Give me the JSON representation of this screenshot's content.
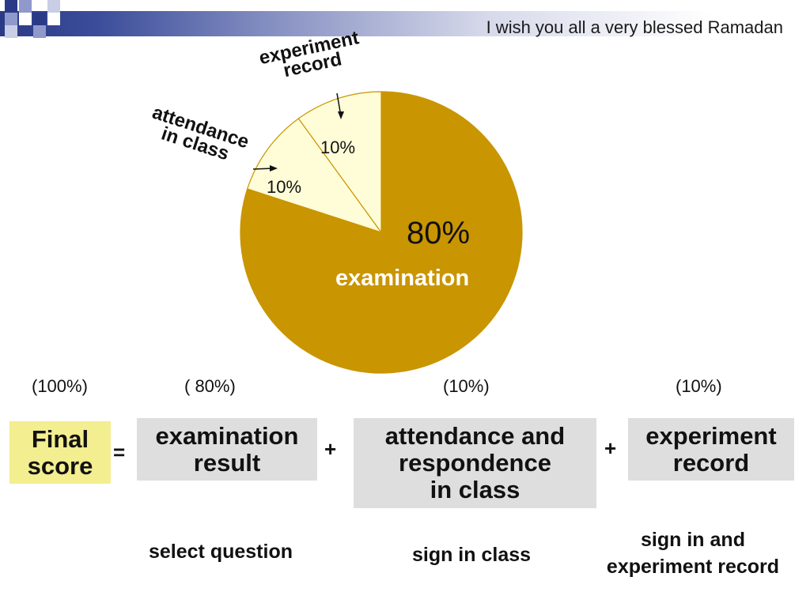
{
  "header": {
    "greeting": "I wish you all a very blessed Ramadan"
  },
  "colors": {
    "accent": "#2b3a87",
    "examination_slice": "#c99500",
    "small_slice": "#fefdd8",
    "final_box": "#f3ee8f",
    "component_box": "#dedede"
  },
  "chart_data": {
    "type": "pie",
    "slices": [
      {
        "label": "examination",
        "value": 80,
        "value_text": "80%"
      },
      {
        "label": "attendance\nin class",
        "value": 10,
        "value_text": "10%"
      },
      {
        "label": "experiment\nrecord",
        "value": 10,
        "value_text": "10%"
      }
    ]
  },
  "formula": {
    "final": {
      "label": "Final\nscore",
      "percent": "(100%)"
    },
    "equals": "=",
    "plus": "+",
    "components": [
      {
        "label": "examination\nresult",
        "percent": "( 80%)",
        "note": "select question"
      },
      {
        "label": "attendance and\nrespondence\nin class",
        "percent": "(10%)",
        "note": "sign in class"
      },
      {
        "label": "experiment\nrecord",
        "percent": "(10%)",
        "note": "sign in and\nexperiment record"
      }
    ]
  }
}
